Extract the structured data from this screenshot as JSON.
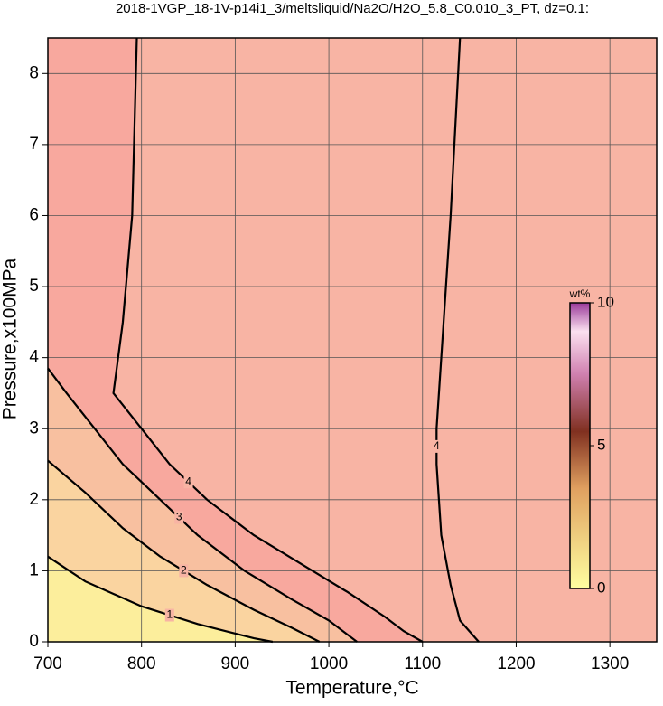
{
  "chart_data": {
    "type": "contour",
    "title": "2018-1VGP_18-1V-p14i1_3/meltsliquid/Na2O/H2O_5.8_C0.010_3_PT, dz=0.1:",
    "xlabel": "Temperature,°C",
    "ylabel": "Pressure,x100MPa",
    "xlim": [
      700,
      1350
    ],
    "ylim": [
      0,
      8.5
    ],
    "xticks": [
      700,
      800,
      900,
      1000,
      1100,
      1200,
      1300
    ],
    "yticks": [
      0,
      1,
      2,
      3,
      4,
      5,
      6,
      7,
      8
    ],
    "grid": true,
    "background": "#f8b4a4",
    "contours": [
      {
        "level": 4,
        "fill": "#f8a89e",
        "x": [
          795,
          790,
          780,
          770,
          800,
          830,
          870,
          920,
          970,
          1020,
          1060,
          1080,
          1100
        ],
        "y": [
          8.5,
          6,
          4.5,
          3.5,
          3.0,
          2.5,
          2.0,
          1.5,
          1.1,
          0.7,
          0.35,
          0.15,
          0
        ]
      },
      {
        "level": 3,
        "fill": "#f8c0a0",
        "x": [
          700,
          720,
          750,
          780,
          820,
          860,
          910,
          960,
          1000,
          1020,
          1030
        ],
        "y": [
          3.85,
          3.5,
          3.0,
          2.5,
          2.0,
          1.5,
          1.0,
          0.6,
          0.3,
          0.1,
          0
        ]
      },
      {
        "level": 2,
        "fill": "#fad4a0",
        "x": [
          700,
          740,
          780,
          820,
          870,
          920,
          960,
          990
        ],
        "y": [
          2.55,
          2.1,
          1.6,
          1.2,
          0.8,
          0.45,
          0.2,
          0
        ]
      },
      {
        "level": 1,
        "fill": "#fcee9c",
        "x": [
          700,
          740,
          800,
          860,
          920,
          940
        ],
        "y": [
          1.2,
          0.85,
          0.5,
          0.25,
          0.05,
          0
        ]
      },
      {
        "level": 4,
        "x": [
          1140,
          1130,
          1120,
          1115,
          1115,
          1120,
          1130,
          1140,
          1160
        ],
        "y": [
          8.5,
          6,
          4,
          3,
          2.5,
          1.5,
          0.8,
          0.3,
          0
        ]
      }
    ],
    "colorbar": {
      "label": "wt%",
      "lim": [
        0,
        10
      ],
      "ticks": [
        0,
        5,
        10
      ]
    }
  }
}
